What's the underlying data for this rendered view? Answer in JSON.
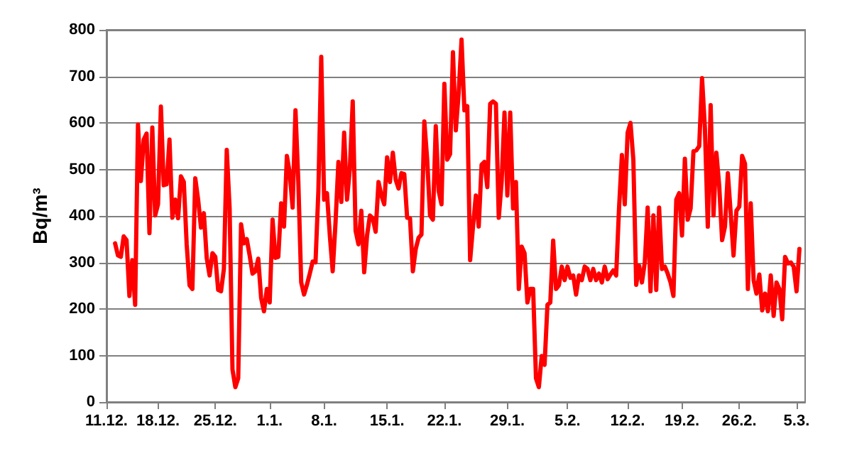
{
  "chart_data": {
    "type": "line",
    "ylabel": "Bq/m³",
    "ylim": [
      0,
      800
    ],
    "categories": [
      "11.12.",
      null,
      null,
      null,
      null,
      null,
      null,
      null,
      null,
      null,
      null,
      null,
      null,
      null,
      null,
      null,
      null,
      null,
      "18.12.",
      null,
      null,
      null,
      null,
      null,
      null,
      null,
      null,
      null,
      null,
      null,
      null,
      null,
      null,
      null,
      null,
      null,
      null,
      null,
      "25.12.",
      null,
      null,
      null,
      null,
      null,
      null,
      null,
      null,
      null,
      null,
      null,
      null,
      null,
      null,
      null,
      null,
      null,
      null,
      "1.1.",
      null,
      null,
      null,
      null,
      null,
      null,
      null,
      null,
      null,
      null,
      null,
      null,
      null,
      null,
      null,
      null,
      null,
      null,
      "8.1.",
      null,
      null,
      null,
      null,
      null,
      null,
      null,
      null,
      null,
      null,
      null,
      null,
      null,
      null,
      null,
      null,
      null,
      null,
      null,
      null,
      null,
      "15.1.",
      null,
      null,
      null,
      null,
      null,
      null,
      null,
      null,
      null,
      null,
      null,
      null,
      null,
      null,
      null,
      null,
      null,
      null,
      null,
      "22.1.",
      null,
      null,
      null,
      null,
      null,
      null,
      null,
      null,
      null,
      null,
      null,
      null,
      null,
      null,
      null,
      null,
      null,
      null,
      null,
      null,
      null,
      "29.1.",
      null,
      null,
      null,
      null,
      null,
      null,
      null,
      null,
      null,
      null,
      null,
      null,
      null,
      null,
      null,
      null,
      null,
      null,
      null,
      null,
      "5.2.",
      null,
      null,
      null,
      null,
      null,
      null,
      null,
      null,
      null,
      null,
      null,
      null,
      null,
      null,
      null,
      null,
      null,
      null,
      null,
      null,
      "12.2.",
      null,
      null,
      null,
      null,
      null,
      null,
      null,
      null,
      null,
      null,
      null,
      null,
      null,
      null,
      null,
      null,
      null,
      null,
      "19.2.",
      null,
      null,
      null,
      null,
      null,
      null,
      null,
      null,
      null,
      null,
      null,
      null,
      null,
      null,
      null,
      null,
      null,
      null,
      null,
      "26.2.",
      null,
      null,
      null,
      null,
      null,
      null,
      null,
      null,
      null,
      null,
      null,
      null,
      null,
      null,
      null,
      null,
      null,
      null,
      null,
      "5.3.",
      null,
      null,
      null
    ],
    "yticks": [
      0,
      100,
      200,
      300,
      400,
      500,
      600,
      700,
      800
    ],
    "grid": "y",
    "marker": "none",
    "line_style": "solid",
    "series": [
      {
        "color": "#ff0000",
        "values": [
          null,
          null,
          null,
          341,
          315,
          312,
          356,
          348,
          228,
          305,
          209,
          596,
          475,
          564,
          577,
          363,
          590,
          401,
          425,
          635,
          466,
          468,
          564,
          396,
          435,
          395,
          485,
          473,
          339,
          251,
          243,
          481,
          435,
          375,
          406,
          310,
          272,
          320,
          312,
          241,
          238,
          286,
          542,
          416,
          70,
          32,
          51,
          382,
          341,
          350,
          315,
          276,
          281,
          308,
          224,
          195,
          243,
          214,
          392,
          310,
          312,
          427,
          377,
          529,
          492,
          418,
          627,
          473,
          257,
          231,
          252,
          276,
          302,
          300,
          454,
          742,
          435,
          449,
          358,
          281,
          387,
          516,
          430,
          579,
          435,
          502,
          646,
          368,
          339,
          411,
          279,
          358,
          401,
          395,
          366,
          473,
          444,
          425,
          526,
          473,
          536,
          478,
          459,
          492,
          490,
          396,
          395,
          281,
          329,
          353,
          360,
          603,
          521,
          401,
          392,
          593,
          454,
          425,
          684,
          521,
          533,
          752,
          584,
          665,
          779,
          627,
          636,
          305,
          377,
          444,
          377,
          510,
          516,
          462,
          641,
          646,
          641,
          396,
          473,
          622,
          444,
          622,
          416,
          473,
          243,
          334,
          320,
          214,
          243,
          243,
          51,
          32,
          99,
          80,
          209,
          214,
          347,
          243,
          251,
          291,
          262,
          291,
          267,
          272,
          231,
          272,
          262,
          291,
          286,
          262,
          286,
          262,
          276,
          257,
          291,
          264,
          274,
          283,
          272,
          416,
          531,
          425,
          579,
          600,
          521,
          252,
          293,
          257,
          300,
          418,
          238,
          401,
          241,
          418,
          286,
          291,
          276,
          257,
          228,
          435,
          449,
          358,
          523,
          392,
          416,
          539,
          541,
          550,
          696,
          588,
          377,
          638,
          401,
          536,
          464,
          348,
          377,
          492,
          406,
          315,
          411,
          420,
          529,
          512,
          243,
          427,
          262,
          233,
          274,
          197,
          233,
          195,
          272,
          185,
          257,
          243,
          178,
          312,
          298,
          300,
          291,
          238,
          329,
          null,
          null
        ]
      }
    ]
  }
}
